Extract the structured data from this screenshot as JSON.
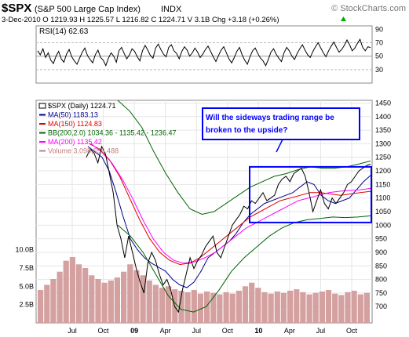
{
  "header": {
    "symbol": "$SPX",
    "name": "(S&P 500 Large Cap Index)",
    "exchange": "INDX",
    "watermark": "© StockCharts.com",
    "quote_line": "3-Dec-2010  O 1219.93  H 1225.57  L 1216.82  C 1224.71  V 3.1B  Chg +3.18 (+0.26%)",
    "quote_change_arrow": "up-arrow-icon"
  },
  "chart_data": [
    {
      "type": "line",
      "panel": "indicator",
      "label": "RSI(14) 62.63",
      "ylim": [
        10,
        95
      ],
      "y_ticks": [
        30,
        50,
        70,
        90
      ],
      "reference_lines": [
        30,
        50,
        70
      ],
      "values": [
        58,
        52,
        61,
        48,
        55,
        44,
        39,
        50,
        57,
        46,
        41,
        53,
        60,
        49,
        43,
        38,
        47,
        56,
        62,
        51,
        45,
        40,
        52,
        59,
        48,
        44,
        36,
        47,
        55,
        50,
        41,
        58,
        63,
        54,
        46,
        52,
        61,
        57,
        49,
        43,
        58,
        66,
        59,
        51,
        47,
        62,
        68,
        60,
        53,
        49,
        63,
        67,
        58,
        54,
        46,
        57,
        64,
        59,
        50,
        55,
        62,
        56,
        48,
        53,
        60,
        65,
        57,
        49,
        42,
        51,
        59,
        64,
        55,
        46,
        40,
        48,
        57,
        63,
        52,
        44,
        38,
        49,
        58,
        62,
        54,
        47,
        43,
        36,
        45,
        56,
        61,
        53,
        47,
        42,
        55,
        63,
        58,
        50,
        45,
        54,
        61,
        67,
        59,
        52,
        48,
        57,
        64,
        70,
        62,
        55,
        49,
        58,
        65,
        71,
        63,
        56,
        60,
        66,
        74,
        67,
        58,
        62,
        69,
        75,
        63,
        58,
        64,
        62.63
      ]
    },
    {
      "type": "line",
      "panel": "price",
      "title": "$SPX (Daily) 1224.71",
      "xlabel": "",
      "ylabel": "",
      "x_ticks": [
        "Jul",
        "Oct",
        "09",
        "Apr",
        "Jul",
        "Oct",
        "10",
        "Apr",
        "Jul",
        "Oct"
      ],
      "ylim": [
        640,
        1460
      ],
      "y_ticks": [
        700,
        750,
        800,
        850,
        900,
        950,
        1000,
        1050,
        1100,
        1150,
        1200,
        1250,
        1300,
        1350,
        1400,
        1450
      ],
      "volume_ticks": [
        "2.5B",
        "5.0B",
        "7.5B",
        "10.0B"
      ],
      "grid": true,
      "legend_position": "top-left",
      "legend": [
        {
          "label": "$SPX (Daily) 1224.71",
          "color": "#000000"
        },
        {
          "label": "MA(50) 1183.13",
          "color": "#00008b"
        },
        {
          "label": "MA(150) 1124.83",
          "color": "#dd0000"
        },
        {
          "label": "BB(200,2.0) 1034.36 - 1135.42 - 1236.47",
          "color": "#006400"
        },
        {
          "label": "MA(200) 1135.42",
          "color": "#ff00ff"
        },
        {
          "label": "Volume 3,098,655,488",
          "color": "#c08080"
        }
      ],
      "annotation": {
        "text_line1": "Will the sideways trading range be",
        "text_line2": "broken to the upside?",
        "color": "#0000ff",
        "price_box": [
          1010,
          1215
        ]
      },
      "price_path": [
        1250,
        1280,
        1265,
        1230,
        1290,
        1260,
        1190,
        1120,
        1000,
        950,
        880,
        960,
        900,
        840,
        790,
        750,
        860,
        900,
        870,
        820,
        780,
        800,
        760,
        700,
        680,
        760,
        820,
        880,
        840,
        870,
        890,
        920,
        940,
        960,
        900,
        880,
        920,
        960,
        1000,
        1020,
        1040,
        1070,
        1060,
        1090,
        1080,
        1100,
        1120,
        1090,
        1100,
        1110,
        1150,
        1170,
        1180,
        1160,
        1190,
        1200,
        1210,
        1180,
        1120,
        1050,
        1090,
        1130,
        1080,
        1060,
        1100,
        1080,
        1100,
        1120,
        1150,
        1160,
        1180,
        1200,
        1210,
        1220,
        1224.71
      ],
      "series": [
        {
          "name": "MA(50)",
          "color": "#00008b",
          "values": [
            1290,
            1270,
            1250,
            1200,
            1120,
            1030,
            950,
            910,
            880,
            860,
            845,
            830,
            800,
            780,
            770,
            790,
            830,
            880,
            900,
            920,
            940,
            970,
            1010,
            1040,
            1060,
            1080,
            1090,
            1100,
            1110,
            1120,
            1140,
            1160,
            1150,
            1110,
            1090,
            1080,
            1090,
            1100,
            1130,
            1160,
            1183.13
          ]
        },
        {
          "name": "MA(150)",
          "color": "#dd0000",
          "values": [
            1300,
            1280,
            1240,
            1180,
            1100,
            1020,
            950,
            900,
            870,
            855,
            860,
            880,
            910,
            940,
            970,
            1000,
            1030,
            1050,
            1070,
            1090,
            1100,
            1110,
            1120,
            1120,
            1115,
            1110,
            1115,
            1120,
            1124.83
          ]
        },
        {
          "name": "MA(200)",
          "color": "#ff00ff",
          "values": [
            1300,
            1270,
            1230,
            1170,
            1100,
            1020,
            950,
            900,
            870,
            860,
            865,
            880,
            900,
            930,
            960,
            990,
            1010,
            1030,
            1050,
            1070,
            1090,
            1100,
            1110,
            1120,
            1125,
            1128,
            1130,
            1135.42
          ]
        },
        {
          "name": "BB upper",
          "color": "#006400",
          "values": [
            1460,
            1420,
            1360,
            1270,
            1190,
            1120,
            1060,
            1040,
            1050,
            1080,
            1110,
            1140,
            1160,
            1180,
            1190,
            1205,
            1215,
            1210,
            1210,
            1215,
            1225,
            1236.47
          ]
        },
        {
          "name": "BB lower",
          "color": "#006400",
          "values": [
            1000,
            960,
            900,
            820,
            740,
            690,
            680,
            700,
            760,
            830,
            880,
            920,
            960,
            990,
            1010,
            1020,
            1025,
            1030,
            1028,
            1030,
            1034.36
          ]
        }
      ],
      "volume_bars": [
        4.5,
        5.2,
        6.0,
        7.0,
        8.5,
        9.0,
        8.0,
        7.5,
        6.5,
        6.0,
        5.5,
        5.8,
        6.2,
        7.0,
        8.0,
        7.2,
        6.5,
        5.8,
        5.2,
        4.8,
        5.0,
        4.6,
        4.4,
        4.2,
        4.5,
        4.0,
        4.3,
        4.1,
        3.9,
        4.2,
        4.0,
        4.4,
        5.0,
        5.5,
        4.8,
        4.2,
        4.0,
        4.3,
        4.1,
        4.4,
        4.6,
        4.2,
        3.9,
        4.1,
        4.3,
        4.5,
        4.0,
        3.8,
        4.2,
        4.4,
        3.9,
        4.1
      ]
    }
  ]
}
